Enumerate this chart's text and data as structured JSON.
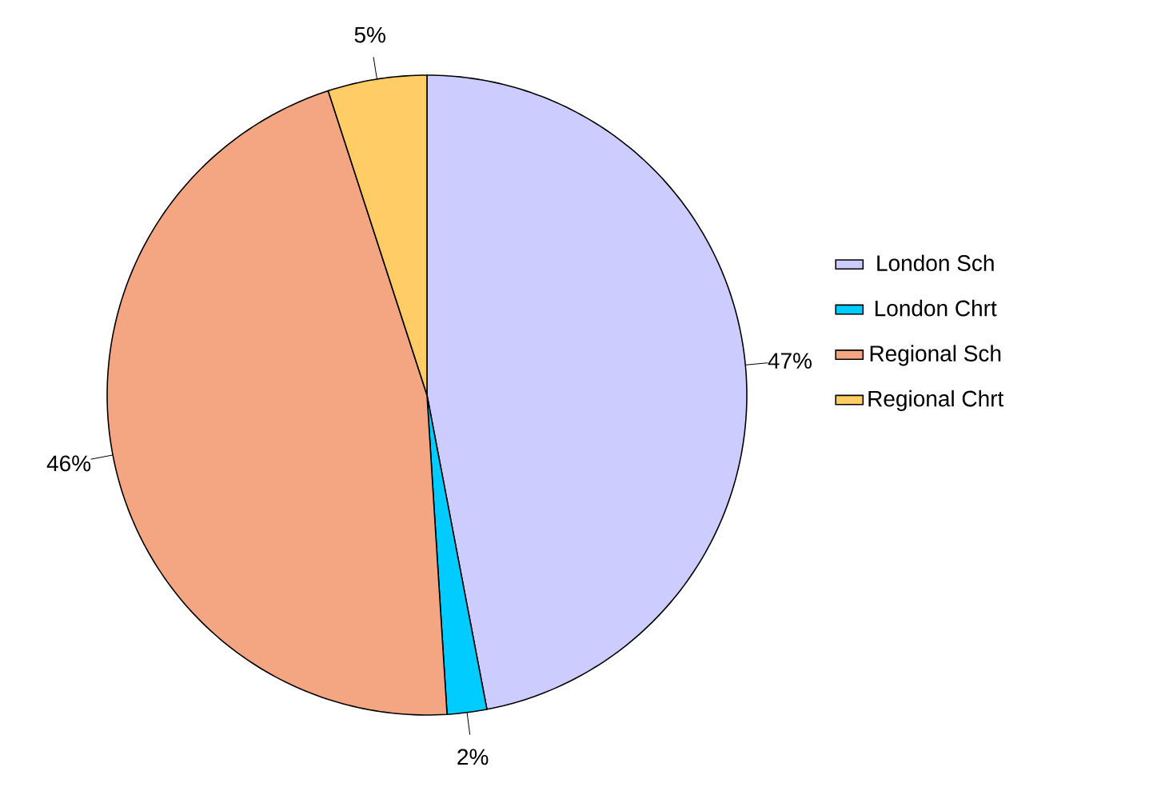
{
  "chart_data": {
    "type": "pie",
    "categories": [
      "London Sch",
      "London Chrt",
      "Regional Sch",
      "Regional Chrt"
    ],
    "values": [
      47,
      2,
      46,
      5
    ],
    "value_labels": [
      "47%",
      "2%",
      "46%",
      "5%"
    ],
    "colors": [
      "#ccccff",
      "#00ccff",
      "#f4a582",
      "#ffcc66"
    ],
    "legend": "right"
  }
}
